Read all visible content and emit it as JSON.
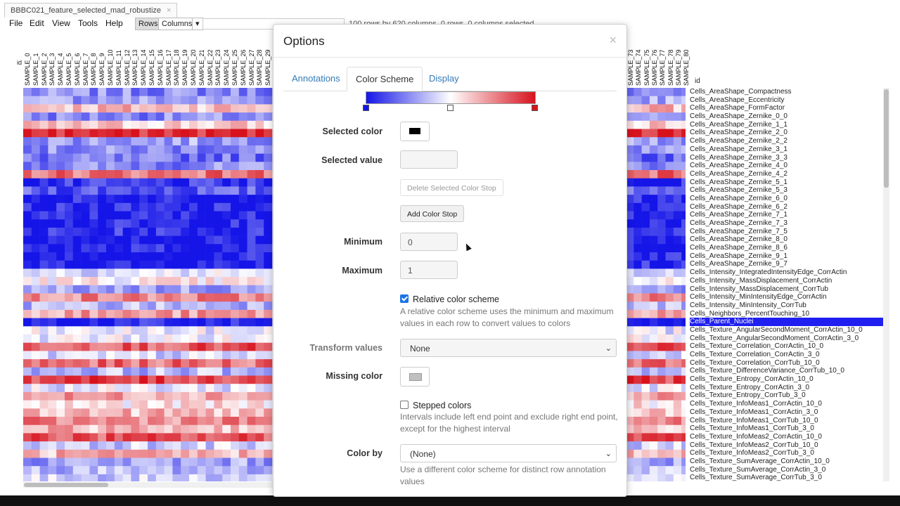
{
  "window": {
    "tab_title": "BBBC021_feature_selected_mad_robustize",
    "tab_close": "×"
  },
  "menu": [
    "File",
    "Edit",
    "View",
    "Tools",
    "Help"
  ],
  "toolbar": {
    "rows_label": "Rows",
    "columns_label": "Columns",
    "dropdown_glyph": "▾",
    "status": "100 rows by 620 columns, 0 rows, 0 columns selected"
  },
  "columns_left": [
    "SAMPLE_0",
    "SAMPLE_1",
    "SAMPLE_2",
    "SAMPLE_3",
    "SAMPLE_4",
    "SAMPLE_5",
    "SAMPLE_6",
    "SAMPLE_7",
    "SAMPLE_8",
    "SAMPLE_9",
    "SAMPLE_10",
    "SAMPLE_11",
    "SAMPLE_12",
    "SAMPLE_13",
    "SAMPLE_14",
    "SAMPLE_15",
    "SAMPLE_16",
    "SAMPLE_17",
    "SAMPLE_18",
    "SAMPLE_19",
    "SAMPLE_20",
    "SAMPLE_21",
    "SAMPLE_22",
    "SAMPLE_23",
    "SAMPLE_24",
    "SAMPLE_25",
    "SAMPLE_26",
    "SAMPLE_27",
    "SAMPLE_28",
    "SAMPLE_29"
  ],
  "columns_right": [
    "SAMPLE_73",
    "SAMPLE_74",
    "SAMPLE_75",
    "SAMPLE_76",
    "SAMPLE_77",
    "SAMPLE_78",
    "SAMPLE_79",
    "SAMPLE_80"
  ],
  "id_label": "id",
  "row_ann_header": "id",
  "rows": [
    "Cells_AreaShape_Compactness",
    "Cells_AreaShape_Eccentricity",
    "Cells_AreaShape_FormFactor",
    "Cells_AreaShape_Zernike_0_0",
    "Cells_AreaShape_Zernike_1_1",
    "Cells_AreaShape_Zernike_2_0",
    "Cells_AreaShape_Zernike_2_2",
    "Cells_AreaShape_Zernike_3_1",
    "Cells_AreaShape_Zernike_3_3",
    "Cells_AreaShape_Zernike_4_0",
    "Cells_AreaShape_Zernike_4_2",
    "Cells_AreaShape_Zernike_5_1",
    "Cells_AreaShape_Zernike_5_3",
    "Cells_AreaShape_Zernike_6_0",
    "Cells_AreaShape_Zernike_6_2",
    "Cells_AreaShape_Zernike_7_1",
    "Cells_AreaShape_Zernike_7_3",
    "Cells_AreaShape_Zernike_7_5",
    "Cells_AreaShape_Zernike_8_0",
    "Cells_AreaShape_Zernike_8_6",
    "Cells_AreaShape_Zernike_9_1",
    "Cells_AreaShape_Zernike_9_7",
    "Cells_Intensity_IntegratedIntensityEdge_CorrActin",
    "Cells_Intensity_MassDisplacement_CorrActin",
    "Cells_Intensity_MassDisplacement_CorrTub",
    "Cells_Intensity_MinIntensityEdge_CorrActin",
    "Cells_Intensity_MinIntensity_CorrTub",
    "Cells_Neighbors_PercentTouching_10",
    "Cells_Parent_Nuclei",
    "Cells_Texture_AngularSecondMoment_CorrActin_10_0",
    "Cells_Texture_AngularSecondMoment_CorrActin_3_0",
    "Cells_Texture_Correlation_CorrActin_10_0",
    "Cells_Texture_Correlation_CorrActin_3_0",
    "Cells_Texture_Correlation_CorrTub_10_0",
    "Cells_Texture_DifferenceVariance_CorrTub_10_0",
    "Cells_Texture_Entropy_CorrActin_10_0",
    "Cells_Texture_Entropy_CorrActin_3_0",
    "Cells_Texture_Entropy_CorrTub_3_0",
    "Cells_Texture_InfoMeas1_CorrActin_10_0",
    "Cells_Texture_InfoMeas1_CorrActin_3_0",
    "Cells_Texture_InfoMeas1_CorrTub_10_0",
    "Cells_Texture_InfoMeas1_CorrTub_3_0",
    "Cells_Texture_InfoMeas2_CorrActin_10_0",
    "Cells_Texture_InfoMeas2_CorrTub_10_0",
    "Cells_Texture_InfoMeas2_CorrTub_3_0",
    "Cells_Texture_SumAverage_CorrActin_10_0",
    "Cells_Texture_SumAverage_CorrActin_3_0",
    "Cells_Texture_SumAverage_CorrTub_3_0"
  ],
  "highlighted_row": "Cells_Parent_Nuclei",
  "row_tones": [
    -0.5,
    -0.4,
    0.3,
    -0.5,
    0.2,
    0.9,
    -0.4,
    -0.5,
    -0.6,
    -0.5,
    0.6,
    -0.9,
    -0.7,
    -0.95,
    -0.95,
    -0.95,
    -0.95,
    -0.9,
    -0.95,
    -0.95,
    -0.95,
    -0.95,
    -0.1,
    0.05,
    -0.4,
    0.5,
    -0.3,
    0.4,
    -0.95,
    -0.1,
    -0.05,
    0.7,
    -0.2,
    0.6,
    -0.3,
    0.8,
    -0.1,
    0.4,
    0.1,
    0.3,
    0.5,
    0.3,
    0.7,
    -0.2,
    0.3,
    -0.4,
    -0.3,
    -0.2
  ],
  "heatmap_colors": {
    "low": "#1515e8",
    "mid": "#ffffff",
    "high": "#d7121d"
  },
  "dialog": {
    "title": "Options",
    "close": "×",
    "tabs": [
      "Annotations",
      "Color Scheme",
      "Display"
    ],
    "active_tab": "Color Scheme",
    "selected_color_label": "Selected color",
    "selected_color": "#000000",
    "selected_value_label": "Selected value",
    "selected_value": "",
    "delete_stop_label": "Delete Selected Color Stop",
    "add_stop_label": "Add Color Stop",
    "minimum_label": "Minimum",
    "minimum_value": "0",
    "maximum_label": "Maximum",
    "maximum_value": "1",
    "relative_label": "Relative color scheme",
    "relative_checked": true,
    "relative_help": "A relative color scheme uses the minimum and maximum values in each row to convert values to colors",
    "transform_label": "Transform values",
    "transform_value": "None",
    "missing_color_label": "Missing color",
    "missing_color": "#c0c0c0",
    "stepped_label": "Stepped colors",
    "stepped_checked": false,
    "stepped_help": "Intervals include left end point and exclude right end point, except for the highest interval",
    "color_by_label": "Color by",
    "color_by_value": "(None)",
    "color_by_help": "Use a different color scheme for distinct row annotation values",
    "chevron": "⌄"
  }
}
